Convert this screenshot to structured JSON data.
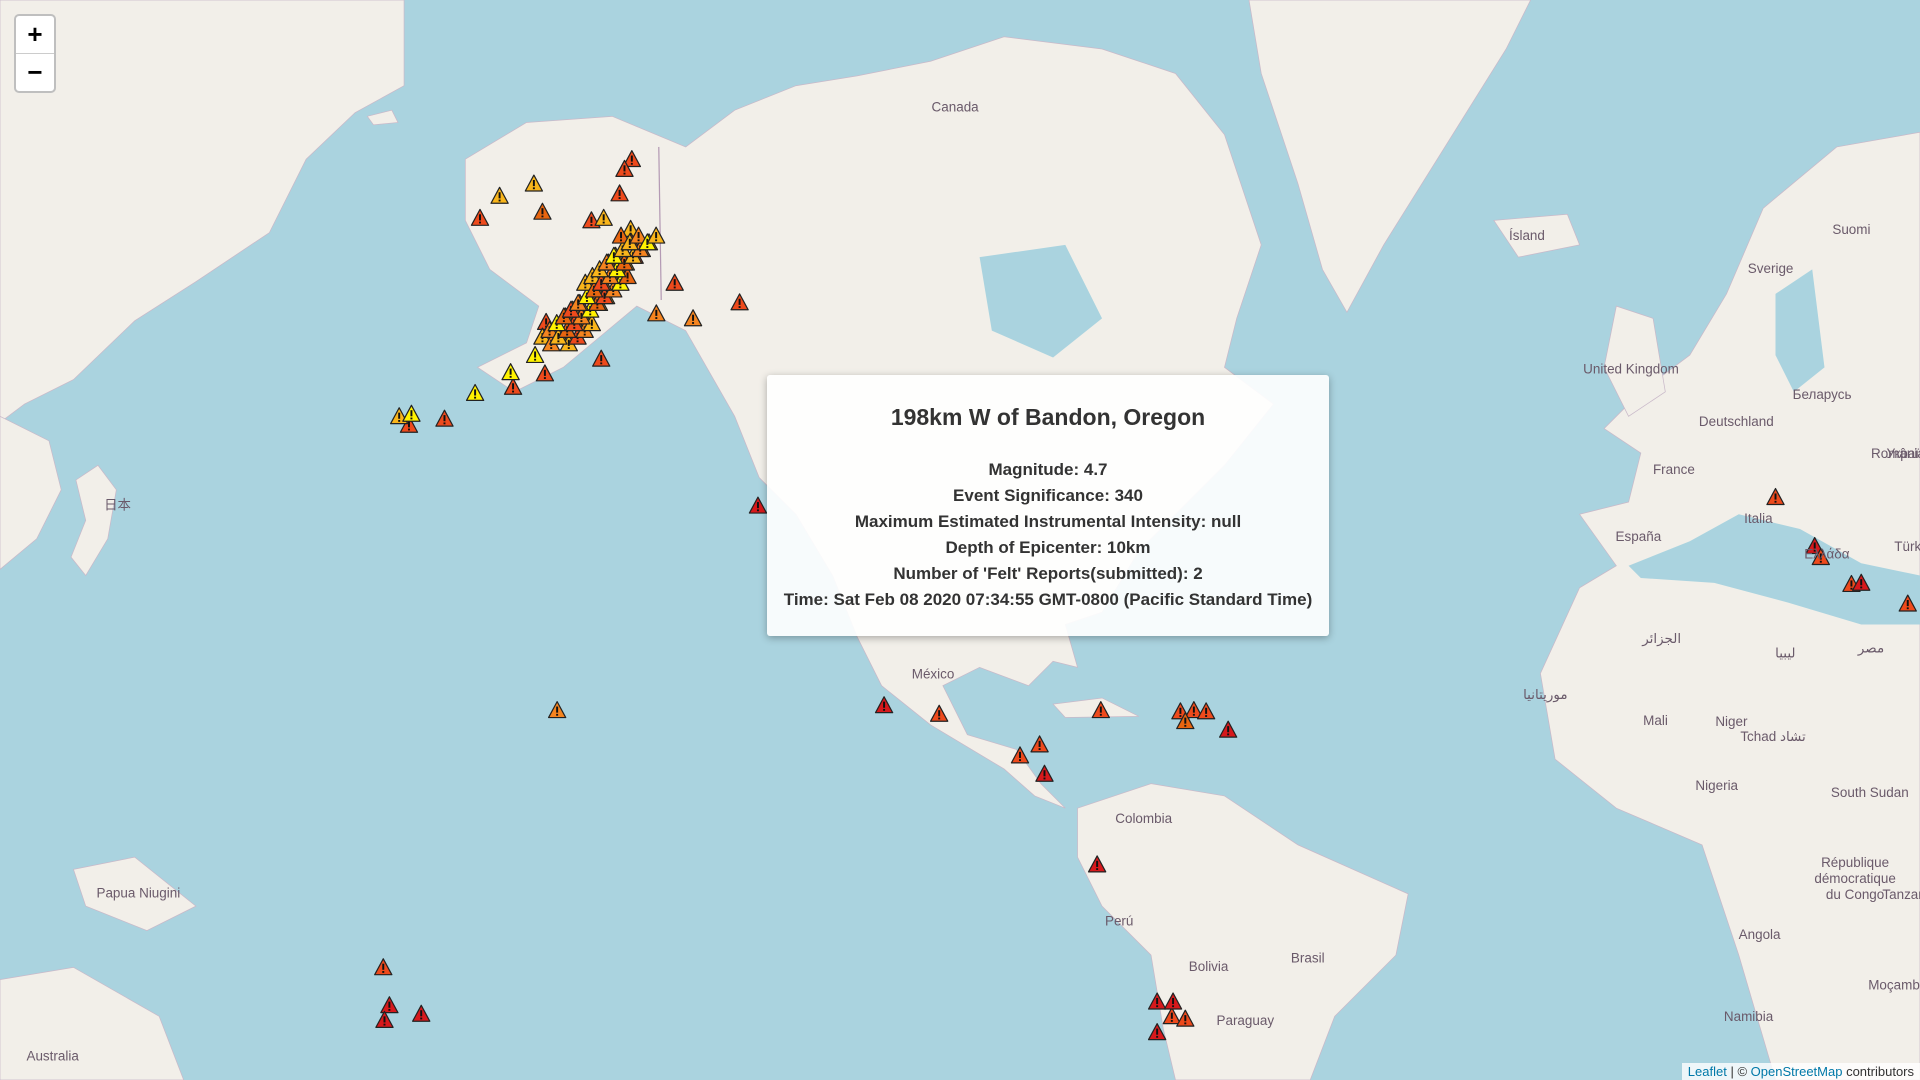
{
  "zoom_controls": {
    "zoom_in": "+",
    "zoom_out": "−"
  },
  "map_labels": [
    "Canada",
    "Ísland",
    "Suomi",
    "Sverige",
    "United Kingdom",
    "Беларусь",
    "Deutschland",
    "France",
    "România",
    "Україна",
    "Italia",
    "España",
    "Ελλάδα",
    "Türk",
    "الجزائر",
    "ليبيا",
    "مصر",
    "موريتانيا",
    "Mali",
    "Niger",
    "Tchad تشاد",
    "Nigeria",
    "South Sudan",
    "République",
    "démocratique",
    "du Congo",
    "Tanzan",
    "Angola",
    "Namibia",
    "Moçambi",
    "México",
    "Colombia",
    "Perú",
    "Bolivia",
    "Brasil",
    "Paraguay",
    "Papua Niugini",
    "Australia",
    "日本"
  ],
  "popup": {
    "title": "198km W of Bandon, Oregon",
    "lines": [
      "Magnitude: 4.7",
      "Event Significance: 340",
      "Maximum Estimated Instrumental Intensity: null",
      "Depth of Epicenter: 10km",
      "Number of 'Felt' Reports(submitted): 2",
      "Time: Sat Feb 08 2020 07:34:55 GMT-0800 (Pacific Standard Time)"
    ]
  },
  "attribution": {
    "leaflet": "Leaflet",
    "separator": "| ©",
    "osm": "OpenStreetMap",
    "suffix": "contributors"
  }
}
